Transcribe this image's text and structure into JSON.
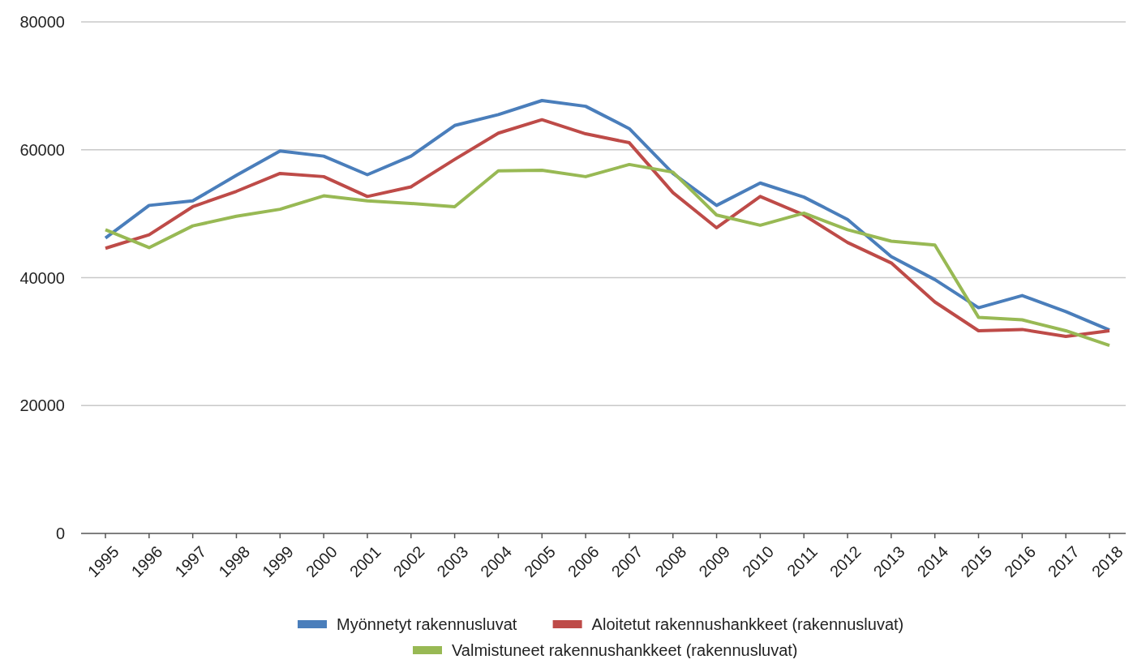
{
  "chart_data": {
    "type": "line",
    "categories": [
      "1995",
      "1996",
      "1997",
      "1998",
      "1999",
      "2000",
      "2001",
      "2002",
      "2003",
      "2004",
      "2005",
      "2006",
      "2007",
      "2008",
      "2009",
      "2010",
      "2011",
      "2012",
      "2013",
      "2014",
      "2015",
      "2016",
      "2017",
      "2018"
    ],
    "series": [
      {
        "name": "Myönnetyt rakennusluvat",
        "color": "#4a7ebb",
        "values": [
          46200,
          51300,
          52000,
          56000,
          59800,
          59000,
          56100,
          59000,
          63800,
          65500,
          67700,
          66800,
          63300,
          56300,
          51300,
          54800,
          52600,
          49100,
          43300,
          39700,
          35300,
          37200,
          34700,
          31800
        ]
      },
      {
        "name": "Aloitetut rakennushankkeet (rakennusluvat)",
        "color": "#be4b48",
        "values": [
          44600,
          46700,
          51100,
          53500,
          56300,
          55800,
          52700,
          54200,
          58500,
          62600,
          64700,
          62500,
          61100,
          53300,
          47800,
          52700,
          49800,
          45500,
          42300,
          36200,
          31700,
          31900,
          30800,
          31700
        ]
      },
      {
        "name": "Valmistuneet rakennushankkeet (rakennusluvat)",
        "color": "#98b954",
        "values": [
          47500,
          44700,
          48100,
          49600,
          50700,
          52800,
          52000,
          51600,
          51100,
          56700,
          56800,
          55800,
          57700,
          56500,
          49800,
          48200,
          50100,
          47500,
          45700,
          45100,
          33800,
          33400,
          31700,
          29400
        ]
      }
    ],
    "ylim": [
      0,
      80000
    ],
    "yticks": [
      0,
      20000,
      40000,
      60000,
      80000
    ],
    "grid": "y",
    "legend": "bottom",
    "marker": "none",
    "line_style": "solid"
  }
}
